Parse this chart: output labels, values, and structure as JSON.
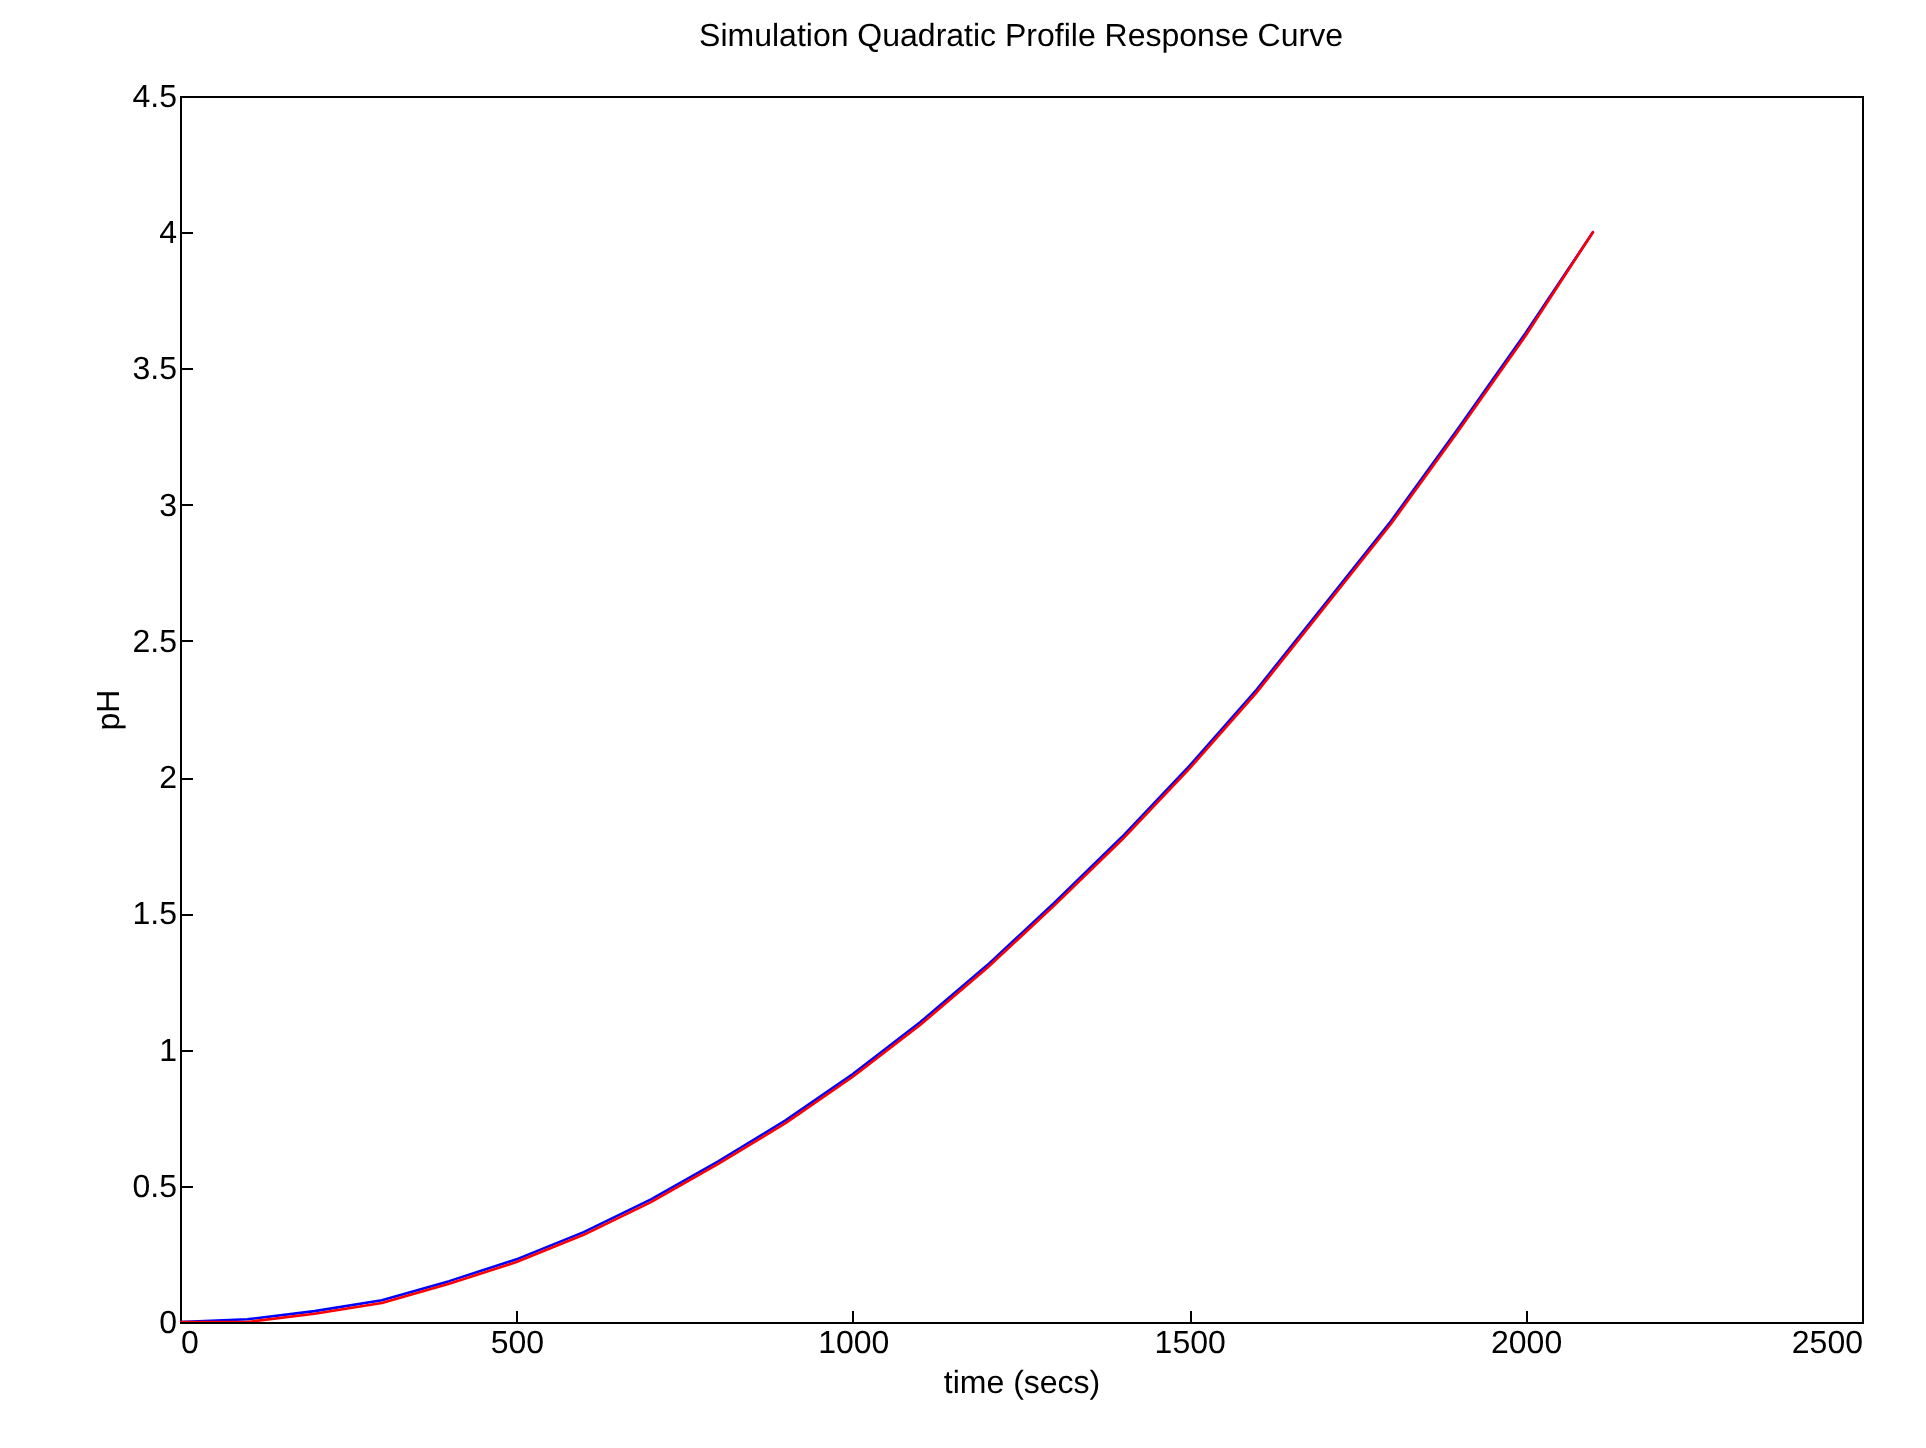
{
  "chart_data": {
    "type": "line",
    "title": "Simulation Quadratic Profile Response Curve",
    "xlabel": "time (secs)",
    "ylabel": "pH",
    "x": [
      0,
      100,
      200,
      300,
      400,
      500,
      600,
      700,
      800,
      900,
      1000,
      1100,
      1200,
      1300,
      1400,
      1500,
      1600,
      1700,
      1800,
      1900,
      2000,
      2100
    ],
    "series": [
      {
        "color": "#0000ff",
        "values": [
          0,
          0.01,
          0.04,
          0.08,
          0.15,
          0.23,
          0.33,
          0.45,
          0.59,
          0.74,
          0.91,
          1.1,
          1.31,
          1.54,
          1.78,
          2.04,
          2.32,
          2.63,
          2.94,
          3.28,
          3.63,
          4.0
        ]
      },
      {
        "color": "#ff0000",
        "values": [
          0,
          0.0,
          0.03,
          0.07,
          0.14,
          0.22,
          0.32,
          0.44,
          0.58,
          0.73,
          0.9,
          1.09,
          1.3,
          1.53,
          1.77,
          2.03,
          2.31,
          2.62,
          2.93,
          3.27,
          3.62,
          4.0
        ]
      }
    ],
    "xlim": [
      0,
      2500
    ],
    "xticks": [
      0,
      500,
      1000,
      1500,
      2000,
      2500
    ],
    "ylim": [
      0,
      4.5
    ],
    "yticks": [
      0,
      0.5,
      1,
      1.5,
      2,
      2.5,
      3,
      3.5,
      4,
      4.5
    ],
    "grid": false,
    "marker": "none",
    "line_style": "solid"
  }
}
